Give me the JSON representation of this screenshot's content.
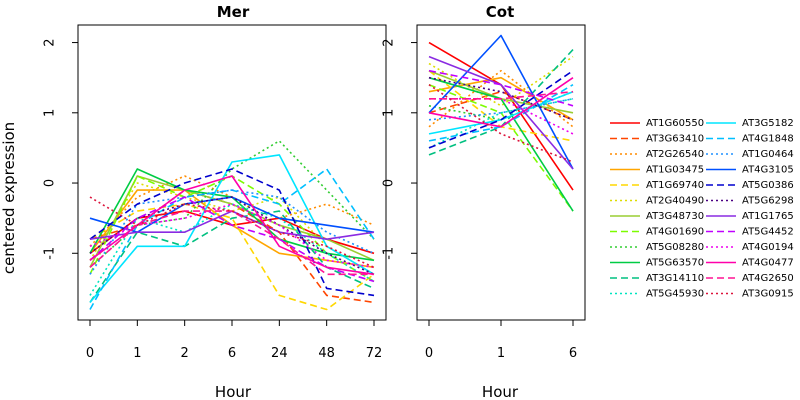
{
  "chart_data": [
    {
      "type": "line",
      "title": "Mer",
      "xlabel": "Hour",
      "ylabel": "centered expression",
      "categories": [
        "0",
        "1",
        "2",
        "6",
        "24",
        "48",
        "72"
      ],
      "yticks": [
        "-1",
        "0",
        "1",
        "2"
      ],
      "ylim": [
        -1.95,
        2.25
      ],
      "grid": false,
      "series": [
        {
          "name": "AT1G60550",
          "color": "#ff0000",
          "dash": "solid",
          "values": [
            -1.0,
            -0.5,
            -0.4,
            -0.6,
            -0.5,
            -0.8,
            -1.0
          ]
        },
        {
          "name": "AT3G63410",
          "color": "#ff4500",
          "dash": "dashed",
          "values": [
            -0.8,
            -0.6,
            -0.1,
            -0.3,
            -0.7,
            -1.6,
            -1.7
          ]
        },
        {
          "name": "AT2G26540",
          "color": "#ff8c00",
          "dash": "dotted",
          "values": [
            -0.9,
            -0.2,
            0.1,
            -0.2,
            -0.5,
            -0.3,
            -0.6
          ]
        },
        {
          "name": "AT1G03475",
          "color": "#ffa500",
          "dash": "solid",
          "values": [
            -1.0,
            -0.1,
            -0.1,
            -0.6,
            -1.0,
            -1.1,
            -1.2
          ]
        },
        {
          "name": "AT1G69740",
          "color": "#ffd700",
          "dash": "dashed",
          "values": [
            -0.8,
            -0.4,
            -0.3,
            -0.5,
            -1.6,
            -1.8,
            -1.3
          ]
        },
        {
          "name": "AT2G40490",
          "color": "#dddd00",
          "dash": "dotted",
          "values": [
            -1.1,
            0.0,
            -0.2,
            -0.4,
            -0.2,
            -0.9,
            -1.3
          ]
        },
        {
          "name": "AT3G48730",
          "color": "#9acd32",
          "dash": "solid",
          "values": [
            -1.2,
            0.1,
            -0.1,
            -0.3,
            -0.6,
            -0.8,
            -1.1
          ]
        },
        {
          "name": "AT4G01690",
          "color": "#7cfc00",
          "dash": "dashed",
          "values": [
            -1.3,
            0.1,
            -0.2,
            0.1,
            -0.3,
            -1.0,
            -1.4
          ]
        },
        {
          "name": "AT5G08280",
          "color": "#32cd32",
          "dash": "dotted",
          "values": [
            -1.2,
            -0.6,
            -0.5,
            0.2,
            0.6,
            -0.1,
            -0.8
          ]
        },
        {
          "name": "AT5G63570",
          "color": "#00cc44",
          "dash": "solid",
          "values": [
            -1.0,
            0.2,
            -0.1,
            -0.2,
            -0.8,
            -1.0,
            -1.1
          ]
        },
        {
          "name": "AT3G14110",
          "color": "#00c080",
          "dash": "dashed",
          "values": [
            -1.7,
            -0.7,
            -0.9,
            -0.5,
            -0.4,
            -1.2,
            -1.5
          ]
        },
        {
          "name": "AT5G45930",
          "color": "#00e5c0",
          "dash": "dotted",
          "values": [
            -1.6,
            -0.5,
            -0.7,
            -0.3,
            -0.5,
            -1.0,
            -1.4
          ]
        },
        {
          "name": "AT3G5182",
          "color": "#00e5ff",
          "dash": "solid",
          "values": [
            -1.7,
            -0.9,
            -0.9,
            0.3,
            0.4,
            -0.9,
            -1.3
          ]
        },
        {
          "name": "AT4G1848",
          "color": "#00bfff",
          "dash": "dashed",
          "values": [
            -1.8,
            -0.6,
            -0.2,
            -0.1,
            -0.3,
            0.2,
            -0.8
          ]
        },
        {
          "name": "AT1G0464",
          "color": "#1e90ff",
          "dash": "dotted",
          "values": [
            -1.3,
            -0.3,
            -0.2,
            -0.1,
            -0.2,
            -0.7,
            -1.0
          ]
        },
        {
          "name": "AT4G3105",
          "color": "#0050ff",
          "dash": "solid",
          "values": [
            -0.5,
            -0.7,
            -0.3,
            -0.2,
            -0.5,
            -0.6,
            -0.7
          ]
        },
        {
          "name": "AT5G0386",
          "color": "#0000cd",
          "dash": "dashed",
          "values": [
            -0.8,
            -0.3,
            0.0,
            0.2,
            -0.1,
            -1.5,
            -1.6
          ]
        },
        {
          "name": "AT5G6298",
          "color": "#4b0082",
          "dash": "dotted",
          "values": [
            -1.0,
            -0.5,
            -0.3,
            -0.2,
            -0.6,
            -1.0,
            -1.3
          ]
        },
        {
          "name": "AT1G1765",
          "color": "#8a2be2",
          "dash": "solid",
          "values": [
            -0.8,
            -0.7,
            -0.7,
            -0.4,
            -0.7,
            -0.8,
            -0.7
          ]
        },
        {
          "name": "AT5G4452",
          "color": "#c000ff",
          "dash": "dashed",
          "values": [
            -1.1,
            -0.5,
            -0.2,
            -0.6,
            -0.8,
            -1.2,
            -1.4
          ]
        },
        {
          "name": "AT4G0194",
          "color": "#ee00ee",
          "dash": "dotted",
          "values": [
            -0.9,
            -0.6,
            -0.5,
            -0.3,
            -0.6,
            -1.1,
            -1.2
          ]
        },
        {
          "name": "AT4G0477",
          "color": "#ff00aa",
          "dash": "solid",
          "values": [
            -1.1,
            -0.6,
            -0.1,
            0.1,
            -0.9,
            -1.2,
            -1.3
          ]
        },
        {
          "name": "AT4G2650",
          "color": "#ff1493",
          "dash": "dashed",
          "values": [
            -1.2,
            -0.6,
            -0.4,
            -0.4,
            -0.8,
            -1.3,
            -1.3
          ]
        },
        {
          "name": "AT3G0915",
          "color": "#dc143c",
          "dash": "dotted",
          "values": [
            -0.2,
            -0.6,
            -0.3,
            -0.4,
            -0.7,
            -0.9,
            -1.2
          ]
        }
      ]
    },
    {
      "type": "line",
      "title": "Cot",
      "xlabel": "Hour",
      "ylabel": "",
      "categories": [
        "0",
        "1",
        "6"
      ],
      "yticks": [
        "-1",
        "0",
        "1",
        "2"
      ],
      "ylim": [
        -1.95,
        2.25
      ],
      "grid": false,
      "series": [
        {
          "name": "AT1G60550",
          "values": [
            2.0,
            1.4,
            -0.1
          ]
        },
        {
          "name": "AT3G63410",
          "values": [
            1.0,
            1.3,
            0.9
          ]
        },
        {
          "name": "AT2G26540",
          "values": [
            0.8,
            1.6,
            0.8
          ]
        },
        {
          "name": "AT1G03475",
          "values": [
            1.3,
            1.5,
            0.9
          ]
        },
        {
          "name": "AT1G69740",
          "values": [
            1.6,
            0.8,
            0.6
          ]
        },
        {
          "name": "AT2G40490",
          "values": [
            1.7,
            1.1,
            1.8
          ]
        },
        {
          "name": "AT3G48730",
          "values": [
            1.6,
            1.2,
            1.0
          ]
        },
        {
          "name": "AT4G01690",
          "values": [
            1.4,
            1.0,
            -0.4
          ]
        },
        {
          "name": "AT5G08280",
          "values": [
            1.1,
            0.9,
            1.3
          ]
        },
        {
          "name": "AT5G63570",
          "values": [
            1.5,
            1.2,
            -0.4
          ]
        },
        {
          "name": "AT3G14110",
          "values": [
            0.4,
            0.8,
            1.9
          ]
        },
        {
          "name": "AT5G45930",
          "values": [
            0.5,
            1.0,
            1.2
          ]
        },
        {
          "name": "AT3G5182",
          "values": [
            0.7,
            0.9,
            1.3
          ]
        },
        {
          "name": "AT4G1848",
          "values": [
            0.6,
            0.8,
            1.4
          ]
        },
        {
          "name": "AT1G0464",
          "values": [
            0.9,
            1.0,
            1.2
          ]
        },
        {
          "name": "AT4G3105",
          "values": [
            1.0,
            2.1,
            0.2
          ]
        },
        {
          "name": "AT5G0386",
          "values": [
            0.5,
            0.9,
            1.6
          ]
        },
        {
          "name": "AT5G6298",
          "values": [
            1.5,
            1.3,
            0.9
          ]
        },
        {
          "name": "AT1G1765",
          "values": [
            1.8,
            1.4,
            0.2
          ]
        },
        {
          "name": "AT5G4452",
          "values": [
            1.6,
            1.4,
            1.1
          ]
        },
        {
          "name": "AT4G0194",
          "values": [
            1.2,
            1.2,
            0.7
          ]
        },
        {
          "name": "AT4G0477",
          "values": [
            1.0,
            0.8,
            1.5
          ]
        },
        {
          "name": "AT4G2650",
          "values": [
            1.2,
            1.2,
            1.3
          ]
        },
        {
          "name": "AT3G0915",
          "values": [
            1.4,
            0.7,
            0.3
          ]
        }
      ]
    }
  ],
  "legend": {
    "placement": "right",
    "columns": 2,
    "entries": [
      "AT1G60550",
      "AT3G63410",
      "AT2G26540",
      "AT1G03475",
      "AT1G69740",
      "AT2G40490",
      "AT3G48730",
      "AT4G01690",
      "AT5G08280",
      "AT5G63570",
      "AT3G14110",
      "AT5G45930",
      "AT3G5182",
      "AT4G1848",
      "AT1G0464",
      "AT4G3105",
      "AT5G0386",
      "AT5G6298",
      "AT1G1765",
      "AT5G4452",
      "AT4G0194",
      "AT4G0477",
      "AT4G2650",
      "AT3G0915"
    ]
  }
}
